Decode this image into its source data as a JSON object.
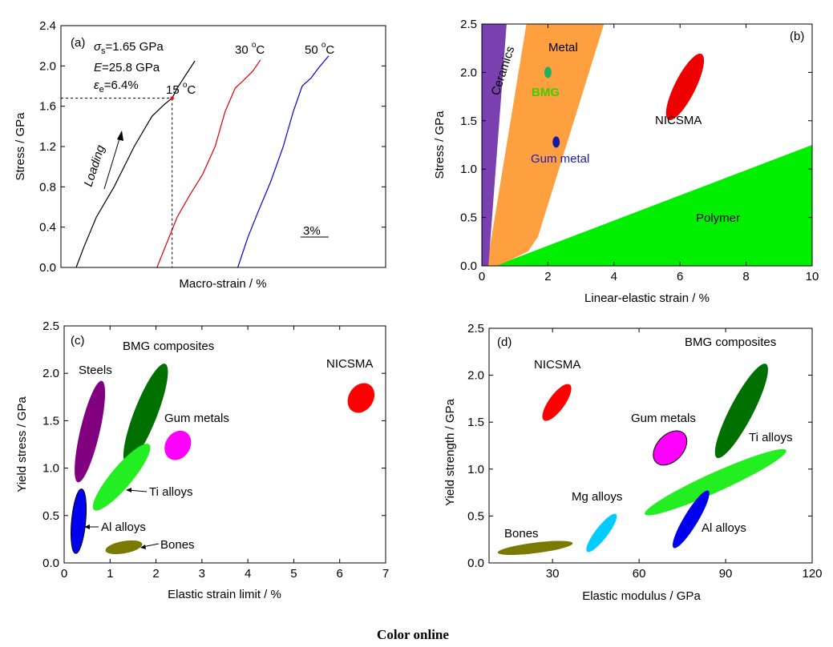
{
  "footer": "Color online",
  "chart_data": [
    {
      "panel": "(a)",
      "type": "line",
      "xlabel": "Macro-strain / %",
      "ylabel": "Stress / GPa",
      "ylim": [
        0,
        2.4
      ],
      "yticks": [
        "0.0",
        "0.4",
        "0.8",
        "1.2",
        "1.6",
        "2.0",
        "2.4"
      ],
      "x_scale_bar": "3%",
      "series": [
        {
          "name": "15 °C",
          "label": "15 ",
          "unit": "C",
          "color": "#000000",
          "points": [
            [
              0.0,
              0.0
            ],
            [
              0.3,
              0.2
            ],
            [
              0.8,
              0.5
            ],
            [
              1.5,
              0.8
            ],
            [
              2.3,
              1.2
            ],
            [
              3.0,
              1.5
            ],
            [
              3.5,
              1.62
            ],
            [
              3.8,
              1.68
            ],
            [
              4.0,
              1.78
            ],
            [
              4.7,
              2.05
            ]
          ]
        },
        {
          "name": "30 °C",
          "label": "30 ",
          "unit": "C",
          "color": "#e00000",
          "points": [
            [
              3.2,
              0.0
            ],
            [
              3.6,
              0.25
            ],
            [
              4.0,
              0.5
            ],
            [
              4.5,
              0.72
            ],
            [
              5.0,
              0.92
            ],
            [
              5.5,
              1.2
            ],
            [
              5.9,
              1.55
            ],
            [
              6.3,
              1.78
            ],
            [
              6.6,
              1.85
            ],
            [
              7.0,
              1.95
            ],
            [
              7.3,
              2.06
            ]
          ]
        },
        {
          "name": "50 °C",
          "label": "50 ",
          "unit": "C",
          "color": "#0000e0",
          "points": [
            [
              6.4,
              0.0
            ],
            [
              6.8,
              0.3
            ],
            [
              7.2,
              0.55
            ],
            [
              7.7,
              0.85
            ],
            [
              8.2,
              1.2
            ],
            [
              8.6,
              1.55
            ],
            [
              8.95,
              1.8
            ],
            [
              9.3,
              1.88
            ],
            [
              9.6,
              1.98
            ],
            [
              10.0,
              2.1
            ]
          ]
        }
      ],
      "annotations": {
        "sigma": "σ",
        "sigma_sub": "s",
        "sigma_val": "=1.65 GPa",
        "E": "E",
        "E_val": "=25.8 GPa",
        "eps": "ε",
        "eps_sub": "e",
        "eps_val": "=6.4%",
        "loading": "Loading",
        "yield_point": [
          3.8,
          1.68
        ]
      }
    },
    {
      "panel": "(b)",
      "type": "area",
      "xlabel": "Linear-elastic strain / %",
      "ylabel": "Stress / GPa",
      "xlim": [
        0,
        10
      ],
      "ylim": [
        0,
        2.5
      ],
      "xticks": [
        "0",
        "2",
        "4",
        "6",
        "8",
        "10"
      ],
      "yticks": [
        "0.0",
        "0.5",
        "1.0",
        "1.5",
        "2.0",
        "2.5"
      ],
      "regions": [
        {
          "name": "Polymer",
          "color": "#00ee00",
          "points": [
            [
              0.4,
              0
            ],
            [
              10,
              0
            ],
            [
              10,
              1.25
            ],
            [
              0.4,
              0
            ]
          ]
        },
        {
          "name": "Metal",
          "color": "#ffa040",
          "points": [
            [
              0.15,
              0
            ],
            [
              1.35,
              2.5
            ],
            [
              3.7,
              2.5
            ],
            [
              1.7,
              0.3
            ],
            [
              1.4,
              0.15
            ],
            [
              0.8,
              0.05
            ],
            [
              0.45,
              0
            ]
          ]
        },
        {
          "name": "Ceramics",
          "color": "#7a40b0",
          "points": [
            [
              0,
              0
            ],
            [
              0,
              2.5
            ],
            [
              0.75,
              2.5
            ],
            [
              0.2,
              0
            ]
          ]
        }
      ],
      "points": [
        {
          "name": "BMG",
          "x": 2.0,
          "y": 2.0,
          "color": "#20b060",
          "label_color": "#44cc00"
        },
        {
          "name": "Gum metal",
          "x": 2.25,
          "y": 1.28,
          "color": "#1a1aa0",
          "label_color": "#1a1ac0"
        }
      ],
      "ellipses": [
        {
          "name": "NICSMA",
          "cx": 6.15,
          "cy": 1.85,
          "rx_data": 0.65,
          "ry_data": 0.12,
          "slope": 0.68,
          "color": "#ee0000"
        }
      ]
    },
    {
      "panel": "(c)",
      "type": "scatter",
      "xlabel": "Elastic strain limit /  %",
      "ylabel": "Yield stress / GPa",
      "xlim": [
        0,
        7
      ],
      "ylim": [
        0,
        2.5
      ],
      "xticks": [
        "0",
        "1",
        "2",
        "3",
        "4",
        "5",
        "6",
        "7"
      ],
      "yticks": [
        "0.0",
        "0.5",
        "1.0",
        "1.5",
        "2.0",
        "2.5"
      ],
      "ellipses": [
        {
          "name": "Steels",
          "color": "#800080",
          "x1": 0.3,
          "y1": 0.85,
          "x2": 0.82,
          "y2": 1.92,
          "w": 0.22
        },
        {
          "name": "BMG composites",
          "color": "#007000",
          "x1": 1.35,
          "y1": 1.05,
          "x2": 2.2,
          "y2": 2.1,
          "w": 0.26
        },
        {
          "name": "Ti alloys",
          "color": "#22ee22",
          "x1": 0.65,
          "y1": 0.56,
          "x2": 1.85,
          "y2": 1.25,
          "w": 0.24
        },
        {
          "name": "Gum metals",
          "color": "#ff00ff",
          "x1": 2.3,
          "y1": 1.1,
          "x2": 2.65,
          "y2": 1.38,
          "w": 0.28
        },
        {
          "name": "Al alloys",
          "color": "#0000ee",
          "x1": 0.25,
          "y1": 0.1,
          "x2": 0.38,
          "y2": 0.78,
          "w": 0.16
        },
        {
          "name": "Bones",
          "color": "#7a7a00",
          "x1": 0.9,
          "y1": 0.13,
          "x2": 1.7,
          "y2": 0.2,
          "w": 0.14
        },
        {
          "name": "NICSMA",
          "color": "#ff0000",
          "x1": 6.28,
          "y1": 1.6,
          "x2": 6.65,
          "y2": 1.88,
          "w": 0.28
        }
      ]
    },
    {
      "panel": "(d)",
      "type": "scatter",
      "xlabel": "Elastic modulus / GPa",
      "ylabel": "Yield strength / GPa",
      "xlim": [
        8,
        120
      ],
      "ylim": [
        0,
        2.5
      ],
      "xticks": [
        "30",
        "60",
        "90",
        "120"
      ],
      "yticks": [
        "0.0",
        "0.5",
        "1.0",
        "1.5",
        "2.0",
        "2.5"
      ],
      "ellipses": [
        {
          "name": "NICSMA",
          "color": "#ff0000",
          "x1": 27,
          "y1": 1.52,
          "x2": 36,
          "y2": 1.9,
          "w": 0.18
        },
        {
          "name": "BMG composites",
          "color": "#007000",
          "x1": 87,
          "y1": 1.12,
          "x2": 104,
          "y2": 2.12,
          "w": 0.26
        },
        {
          "name": "Gum metals",
          "color": "#ff00ff",
          "x1": 66,
          "y1": 1.07,
          "x2": 75.5,
          "y2": 1.38,
          "w": 0.3
        },
        {
          "name": "Ti alloys",
          "color": "#22ee22",
          "x1": 62,
          "y1": 0.52,
          "x2": 111,
          "y2": 1.2,
          "w": 0.22
        },
        {
          "name": "Mg alloys",
          "color": "#00ccff",
          "x1": 42,
          "y1": 0.12,
          "x2": 52,
          "y2": 0.52,
          "w": 0.14
        },
        {
          "name": "Al alloys",
          "color": "#0000ee",
          "x1": 72,
          "y1": 0.16,
          "x2": 84,
          "y2": 0.77,
          "w": 0.16
        },
        {
          "name": "Bones",
          "color": "#7a7a00",
          "x1": 11,
          "y1": 0.11,
          "x2": 37,
          "y2": 0.21,
          "w": 0.12
        }
      ]
    }
  ]
}
